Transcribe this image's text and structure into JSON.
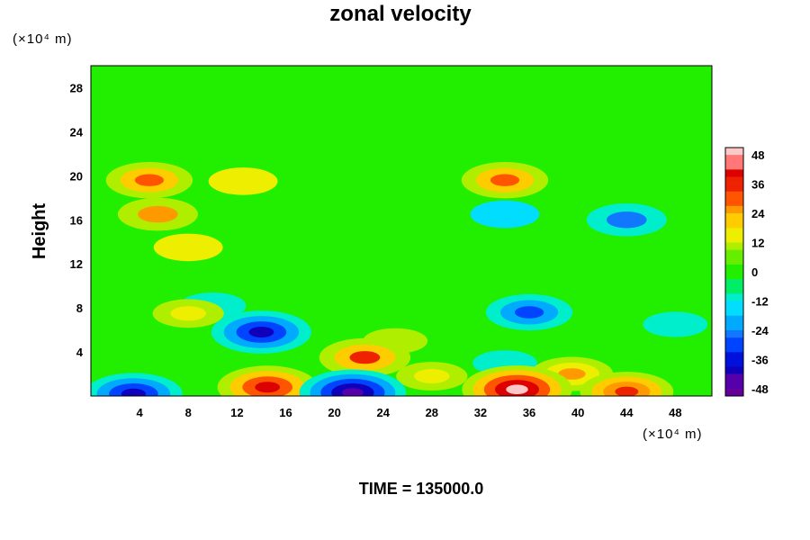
{
  "chart_data": {
    "type": "heatmap",
    "title": "zonal velocity",
    "ylabel": "Height",
    "y_unit": "(×10⁴ m)",
    "x_unit": "(×10⁴ m)",
    "xlim": [
      0,
      51
    ],
    "ylim": [
      0,
      30
    ],
    "xticks": [
      4,
      8,
      12,
      16,
      20,
      24,
      28,
      32,
      36,
      40,
      44,
      48
    ],
    "yticks": [
      4,
      8,
      12,
      16,
      20,
      24,
      28
    ],
    "colorbar": {
      "range": [
        -51,
        51
      ],
      "ticks": [
        48,
        36,
        24,
        12,
        0,
        -12,
        -24,
        -36,
        -48
      ]
    },
    "background_value": 0,
    "features": [
      {
        "x": 14.0,
        "y": 5.8,
        "value": -42
      },
      {
        "x": 36.0,
        "y": 7.6,
        "value": -30
      },
      {
        "x": 21.5,
        "y": 0.3,
        "value": -48
      },
      {
        "x": 3.5,
        "y": 0.2,
        "value": -40
      },
      {
        "x": 14.5,
        "y": 0.8,
        "value": 42
      },
      {
        "x": 35.0,
        "y": 0.6,
        "value": 51
      },
      {
        "x": 44.0,
        "y": 0.4,
        "value": 36
      },
      {
        "x": 22.5,
        "y": 3.5,
        "value": 34
      },
      {
        "x": 39.5,
        "y": 2.0,
        "value": 26
      },
      {
        "x": 34.0,
        "y": 19.6,
        "value": 30
      },
      {
        "x": 4.8,
        "y": 19.6,
        "value": 30
      },
      {
        "x": 12.5,
        "y": 19.5,
        "value": 14
      },
      {
        "x": 5.5,
        "y": 16.5,
        "value": 24
      },
      {
        "x": 44.0,
        "y": 16.0,
        "value": -24
      },
      {
        "x": 34.0,
        "y": 16.5,
        "value": -14
      },
      {
        "x": 8.0,
        "y": 13.5,
        "value": 14
      },
      {
        "x": 8.0,
        "y": 7.5,
        "value": 16
      },
      {
        "x": 10.0,
        "y": 8.2,
        "value": -12
      },
      {
        "x": 28.0,
        "y": 1.8,
        "value": 16
      },
      {
        "x": 25.0,
        "y": 5.0,
        "value": 10
      },
      {
        "x": 34.0,
        "y": 3.0,
        "value": -10
      },
      {
        "x": 48.0,
        "y": 6.5,
        "value": -10
      }
    ],
    "annotation": "TIME = 135000.0"
  },
  "colors": {
    "positive": [
      "#22ee00",
      "#66ee00",
      "#b0ee00",
      "#eeee00",
      "#ffcc00",
      "#ff9900",
      "#ff5500",
      "#ee2200",
      "#dd0000",
      "#ff7777",
      "#ffc8c8"
    ],
    "negative": [
      "#22ee00",
      "#00ee66",
      "#00eecc",
      "#00ddff",
      "#00aaff",
      "#1177ff",
      "#0044ff",
      "#0011dd",
      "#1100bb",
      "#5500aa",
      "#660099"
    ]
  }
}
